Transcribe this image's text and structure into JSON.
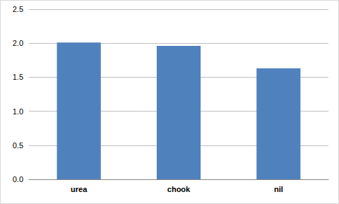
{
  "chart_data": {
    "type": "bar",
    "categories": [
      "urea",
      "chook",
      "nil"
    ],
    "values": [
      2.01,
      1.96,
      1.63
    ],
    "color": "#4f81bd",
    "ylim": [
      0,
      2.5
    ],
    "yticks": [
      {
        "value": 0,
        "label": "0.0"
      },
      0.5,
      {
        "value": 1,
        "label": "1.0"
      },
      1.5,
      {
        "value": 2,
        "label": "2.0"
      },
      2.5
    ],
    "grid": true
  }
}
